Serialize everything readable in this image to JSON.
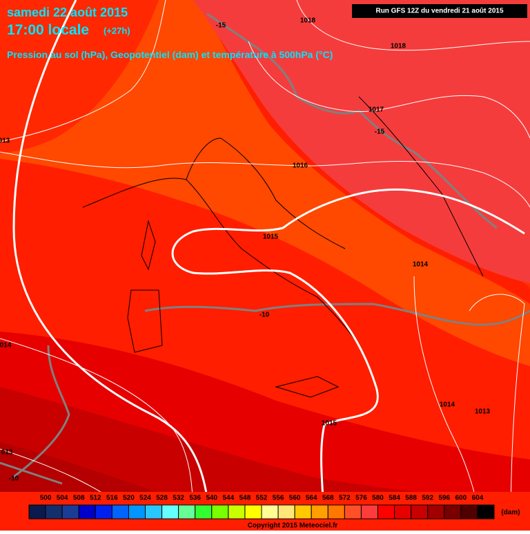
{
  "header": {
    "date": "samedi 22 août 2015",
    "time": "17:00 locale",
    "lead": "(+27h)",
    "subtitle": "Pression au sol (hPa), Geopotentiel (dam) et température à 500hPa (°C)",
    "run": "Run GFS 12Z du vendredi 21 août 2015"
  },
  "isobar_labels": [
    "1018",
    "1018",
    "1017",
    "1016",
    "1015",
    "1014",
    "1014",
    "1013",
    "1015",
    "013",
    "014",
    "013"
  ],
  "temperature_labels": [
    "-15",
    "-15",
    "-10",
    "-10"
  ],
  "legend": {
    "ticks": [
      500,
      504,
      508,
      512,
      516,
      520,
      524,
      528,
      532,
      536,
      540,
      544,
      548,
      552,
      556,
      560,
      564,
      568,
      572,
      576,
      580,
      584,
      588,
      592,
      596,
      600,
      604
    ],
    "colors": [
      "#0a1a4e",
      "#13306e",
      "#1b3c96",
      "#0000c8",
      "#0020f0",
      "#0064ff",
      "#0096ff",
      "#28c8ff",
      "#64ffff",
      "#64ff96",
      "#32ff32",
      "#78ff00",
      "#c8ff00",
      "#ffff00",
      "#ffff96",
      "#ffe678",
      "#ffc800",
      "#ffa000",
      "#ff7800",
      "#ff5028",
      "#ff3c3c",
      "#ff0000",
      "#e60000",
      "#c80000",
      "#a00000",
      "#780000",
      "#500000",
      "#000000"
    ],
    "unit": "(dam)"
  },
  "copyright": "Copyright 2015 Meteociel.fr"
}
